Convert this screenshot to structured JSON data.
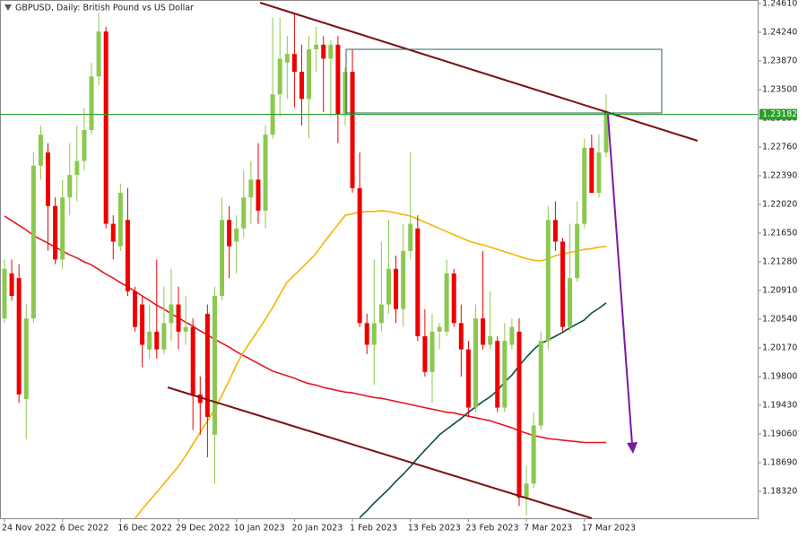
{
  "chart_data": {
    "type": "candlestick",
    "title": "GBPUSD, Daily:  British Pound vs US Dollar",
    "categories": [
      "24 Nov 2022",
      null,
      null,
      null,
      null,
      null,
      null,
      null,
      "6 Dec 2022",
      null,
      null,
      null,
      null,
      null,
      null,
      null,
      "16 Dec 2022",
      null,
      null,
      null,
      null,
      null,
      null,
      null,
      "29 Dec 2022",
      null,
      null,
      null,
      null,
      null,
      null,
      null,
      "10 Jan 2023",
      null,
      null,
      null,
      null,
      null,
      null,
      null,
      "20 Jan 2023",
      null,
      null,
      null,
      null,
      null,
      null,
      null,
      "1 Feb 2023",
      null,
      null,
      null,
      null,
      null,
      null,
      null,
      "13 Feb 2023",
      null,
      null,
      null,
      null,
      null,
      null,
      null,
      "23 Feb 2023",
      null,
      null,
      null,
      null,
      null,
      null,
      null,
      "7 Mar 2023",
      null,
      null,
      null,
      null,
      null,
      null,
      null,
      "17 Mar 2023",
      null,
      null,
      null
    ],
    "open": [
      1.2055,
      1.2113,
      1.2107,
      1.1951,
      1.2055,
      1.2252,
      1.2269,
      1.22,
      1.2131,
      1.2211,
      1.224,
      1.2258,
      1.2298,
      1.2367,
      1.2425,
      1.2177,
      1.2148,
      1.2182,
      1.209,
      1.2073,
      1.2015,
      1.2038,
      1.2015,
      1.2049,
      1.2073,
      1.2038,
      1.2044,
      1.1957,
      1.2061,
      1.1905,
      1.2084,
      1.2182,
      1.2154,
      1.2171,
      1.2211,
      1.2234,
      1.2194,
      1.2292,
      1.2344,
      1.2385,
      1.2396,
      1.2373,
      1.2338,
      1.2402,
      1.2408,
      1.239,
      1.2408,
      1.2318,
      1.2373,
      1.2223,
      1.2049,
      1.2021,
      1.2049,
      1.2073,
      1.2119,
      1.2067,
      1.2142,
      1.2171,
      1.2032,
      1.1986,
      1.2038,
      1.2038,
      1.2113,
      1.2049,
      1.2015,
      1.194,
      1.2055,
      1.2021,
      1.2026,
      1.194,
      1.2021,
      1.2038,
      1.1824,
      1.1842,
      1.1917,
      1.2026,
      1.2182,
      1.2154,
      1.2044,
      1.2107,
      1.2177,
      1.2275,
      1.2217,
      1.2269
    ],
    "high": [
      1.2131,
      1.2131,
      1.2125,
      1.2073,
      1.2269,
      1.2304,
      1.2281,
      1.2211,
      1.2234,
      1.2281,
      1.2304,
      1.2327,
      1.2385,
      1.2449,
      1.2431,
      1.2188,
      1.2229,
      1.2223,
      1.2096,
      1.2084,
      1.2073,
      1.2131,
      1.2096,
      1.2119,
      1.2096,
      1.2084,
      1.2055,
      1.198,
      1.2073,
      1.2096,
      1.2211,
      1.22,
      1.2188,
      1.2246,
      1.2258,
      1.2281,
      1.2304,
      1.2443,
      1.2443,
      1.2419,
      1.2449,
      1.2408,
      1.2419,
      1.2431,
      1.2419,
      1.2414,
      1.2419,
      1.2379,
      1.2402,
      1.2269,
      1.2061,
      1.2131,
      1.2154,
      1.2182,
      1.2136,
      1.2177,
      1.2269,
      1.2188,
      1.2067,
      1.2061,
      1.2049,
      1.2131,
      1.2119,
      1.2073,
      1.2026,
      1.2073,
      1.2142,
      1.209,
      1.2032,
      1.2049,
      1.2055,
      1.2055,
      1.1865,
      1.1934,
      1.2038,
      1.22,
      1.2206,
      1.2159,
      1.2177,
      1.2206,
      1.2287,
      1.2292,
      1.2292,
      1.2344
    ],
    "low": [
      1.2049,
      1.2078,
      1.1946,
      1.1899,
      1.2049,
      1.2234,
      1.2142,
      1.2125,
      1.2119,
      1.2188,
      1.2206,
      1.2246,
      1.2292,
      1.2356,
      1.2171,
      1.2131,
      1.2142,
      1.2084,
      1.2038,
      1.1992,
      1.2003,
      1.2003,
      1.2009,
      1.2026,
      1.2015,
      1.2021,
      1.1911,
      1.1905,
      1.1876,
      1.1842,
      1.2078,
      1.2107,
      1.2113,
      1.2159,
      1.2177,
      1.2177,
      1.2171,
      1.2287,
      1.2315,
      1.2338,
      1.2327,
      1.2304,
      1.2287,
      1.2373,
      1.2321,
      1.2315,
      1.2281,
      1.2304,
      1.2217,
      1.2044,
      1.2009,
      1.1969,
      1.2038,
      1.2061,
      1.2049,
      1.2044,
      1.2131,
      1.2026,
      1.198,
      1.1946,
      1.2015,
      1.2032,
      1.2044,
      1.198,
      1.1928,
      1.1934,
      1.2015,
      1.2015,
      1.1934,
      1.1934,
      1.2015,
      1.1813,
      1.1801,
      1.1836,
      1.1911,
      1.2015,
      1.2142,
      1.2038,
      1.2038,
      1.2102,
      1.2171,
      1.2217,
      1.2211,
      1.2263
    ],
    "close": [
      1.2119,
      1.2084,
      1.1957,
      1.2055,
      1.2252,
      1.2292,
      1.22,
      1.2131,
      1.2211,
      1.224,
      1.2258,
      1.2298,
      1.2367,
      1.2425,
      1.2177,
      1.2154,
      1.2217,
      1.209,
      1.2044,
      1.2021,
      1.2038,
      1.2015,
      1.2049,
      1.2073,
      1.2038,
      1.2044,
      1.1957,
      1.1946,
      1.1928,
      1.2084,
      1.2182,
      1.2148,
      1.2171,
      1.2211,
      1.2234,
      1.2194,
      1.2292,
      1.2344,
      1.239,
      1.2396,
      1.2373,
      1.2338,
      1.2402,
      1.2408,
      1.239,
      1.2408,
      1.2318,
      1.2373,
      1.2223,
      1.2049,
      1.2021,
      1.2049,
      1.2073,
      1.2119,
      1.2067,
      1.2142,
      1.2177,
      1.2032,
      1.1986,
      1.2038,
      1.2044,
      1.2113,
      1.2049,
      1.2015,
      1.194,
      1.2055,
      1.2021,
      1.2032,
      1.194,
      1.2026,
      1.2044,
      1.1824,
      1.1842,
      1.1917,
      1.2026,
      1.2182,
      1.2154,
      1.2044,
      1.2107,
      1.2177,
      1.2275,
      1.2217,
      1.2269,
      1.2321
    ],
    "up_color": "#8cc850",
    "down_color": "#ee0000",
    "lines": [
      {
        "color": "#e8141e",
        "values": [
          1.2187,
          1.2181,
          1.2175,
          1.2169,
          1.2162,
          1.2157,
          1.2152,
          1.2147,
          1.2142,
          1.2137,
          1.2133,
          1.2128,
          1.2124,
          1.2118,
          1.2112,
          1.2107,
          1.2101,
          1.2096,
          1.209,
          1.2084,
          1.2078,
          1.2072,
          1.2067,
          1.2061,
          1.2056,
          1.205,
          1.2045,
          1.2039,
          1.2034,
          1.2028,
          1.2023,
          1.2018,
          1.2012,
          1.2007,
          1.2002,
          1.1997,
          1.1992,
          1.1987,
          1.1984,
          1.1981,
          1.1978,
          1.1974,
          1.1971,
          1.1969,
          1.1966,
          1.1964,
          1.1962,
          1.196,
          1.1959,
          1.1957,
          1.1955,
          1.1953,
          1.1952,
          1.195,
          1.1948,
          1.1946,
          1.1944,
          1.1942,
          1.194,
          1.1938,
          1.1936,
          1.1934,
          1.1933,
          1.1931,
          1.1929,
          1.1927,
          1.1925,
          1.1923,
          1.192,
          1.1917,
          1.1914,
          1.191,
          1.1907,
          1.1904,
          1.1902,
          1.19,
          1.1899,
          1.1898,
          1.1897,
          1.1896,
          1.1895,
          1.1895,
          1.1895,
          1.1895
        ]
      },
      {
        "color": "#f5b400",
        "values": [
          null,
          null,
          null,
          null,
          null,
          null,
          null,
          null,
          null,
          null,
          null,
          null,
          null,
          null,
          null,
          null,
          null,
          null,
          1.1797,
          1.1809,
          1.182,
          1.1831,
          1.1842,
          1.1853,
          1.1864,
          1.1878,
          1.1893,
          1.1908,
          1.1923,
          1.1938,
          1.1956,
          1.1975,
          1.1995,
          1.2012,
          1.2026,
          1.204,
          1.2054,
          1.2069,
          1.2086,
          1.2102,
          1.2111,
          1.212,
          1.2129,
          1.2139,
          1.2152,
          1.2164,
          1.2176,
          1.2188,
          1.219,
          1.2192,
          1.2193,
          1.2193,
          1.2194,
          1.2193,
          1.2191,
          1.2189,
          1.2187,
          1.2183,
          1.2179,
          1.2175,
          1.2171,
          1.2167,
          1.2163,
          1.2159,
          1.2155,
          1.2152,
          1.215,
          1.2147,
          1.2144,
          1.2141,
          1.2138,
          1.2135,
          1.2132,
          1.213,
          1.2129,
          1.2132,
          1.2136,
          1.2138,
          1.214,
          1.2142,
          1.2144,
          1.2145,
          1.2147,
          1.2148
        ]
      },
      {
        "color": "#0f4b4b",
        "values": [
          null,
          null,
          null,
          null,
          null,
          null,
          null,
          null,
          null,
          null,
          null,
          null,
          null,
          null,
          null,
          null,
          null,
          null,
          null,
          null,
          null,
          null,
          null,
          null,
          null,
          null,
          null,
          null,
          null,
          null,
          null,
          null,
          null,
          null,
          null,
          null,
          null,
          null,
          null,
          null,
          null,
          null,
          null,
          null,
          null,
          null,
          null,
          null,
          null,
          1.1798,
          1.1807,
          1.1817,
          1.1826,
          1.1835,
          1.1845,
          1.1854,
          1.1864,
          1.1875,
          1.1885,
          1.1895,
          1.1905,
          1.1912,
          1.1919,
          1.1926,
          1.1934,
          1.1941,
          1.1948,
          1.1954,
          1.1962,
          1.1973,
          1.1982,
          1.1994,
          1.2005,
          1.2015,
          1.2023,
          1.2027,
          1.2032,
          1.2037,
          1.2043,
          1.2048,
          1.2053,
          1.2062,
          1.2068,
          1.2075
        ]
      }
    ],
    "hline": {
      "value": 1.23182,
      "color": "#28a028"
    },
    "ylim": [
      1.17973,
      1.24656
    ],
    "yticks": [
      {
        "value": 1.2461,
        "label": "1.24610"
      },
      {
        "value": 1.2424,
        "label": "1.24240"
      },
      {
        "value": 1.2387,
        "label": "1.23870"
      },
      {
        "value": 1.235,
        "label": "1.23500"
      },
      {
        "value": 1.2313,
        "label": "1.23130"
      },
      {
        "value": 1.2276,
        "label": "1.22760"
      },
      {
        "value": 1.2239,
        "label": "1.22390"
      },
      {
        "value": 1.2202,
        "label": "1.22020"
      },
      {
        "value": 1.2165,
        "label": "1.21650"
      },
      {
        "value": 1.2128,
        "label": "1.21280"
      },
      {
        "value": 1.2091,
        "label": "1.20910"
      },
      {
        "value": 1.2054,
        "label": "1.20540"
      },
      {
        "value": 1.2017,
        "label": "1.20170"
      },
      {
        "value": 1.198,
        "label": "1.19800"
      },
      {
        "value": 1.1943,
        "label": "1.19430"
      },
      {
        "value": 1.1906,
        "label": "1.19060"
      },
      {
        "value": 1.1869,
        "label": "1.18690"
      },
      {
        "value": 1.1832,
        "label": "1.18320"
      }
    ]
  }
}
